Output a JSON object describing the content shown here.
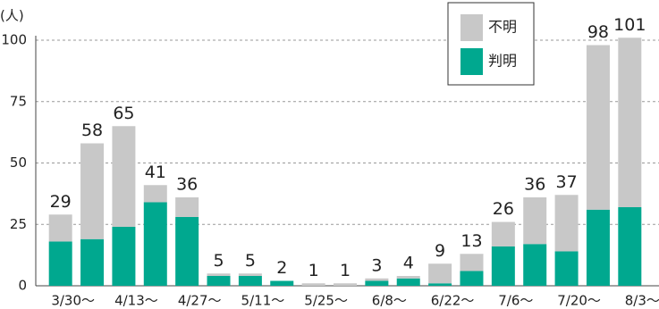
{
  "chart_data": {
    "type": "bar",
    "stacked": true,
    "y_label": "(人)",
    "categories": [
      "3/30〜",
      null,
      "4/13〜",
      null,
      "4/27〜",
      null,
      "5/11〜",
      null,
      "5/25〜",
      null,
      "6/8〜",
      null,
      "6/22〜",
      null,
      "7/6〜",
      null,
      "7/20〜",
      null,
      "8/3〜"
    ],
    "series": [
      {
        "name": "判明",
        "color": "#00a88f",
        "values": [
          18,
          19,
          24,
          34,
          28,
          4,
          4,
          2,
          0,
          0,
          2,
          3,
          1,
          6,
          16,
          17,
          14,
          31,
          32
        ]
      },
      {
        "name": "不明",
        "color": "#c8c8c8",
        "values": [
          11,
          39,
          41,
          7,
          8,
          1,
          1,
          0,
          1,
          1,
          1,
          1,
          8,
          7,
          10,
          19,
          23,
          67,
          69
        ]
      }
    ],
    "totals": [
      29,
      58,
      65,
      41,
      36,
      5,
      5,
      2,
      1,
      1,
      3,
      4,
      9,
      13,
      26,
      36,
      37,
      98,
      101
    ],
    "ylim": [
      0,
      100
    ],
    "yticks": [
      0,
      25,
      50,
      75,
      100
    ],
    "grid": true
  }
}
